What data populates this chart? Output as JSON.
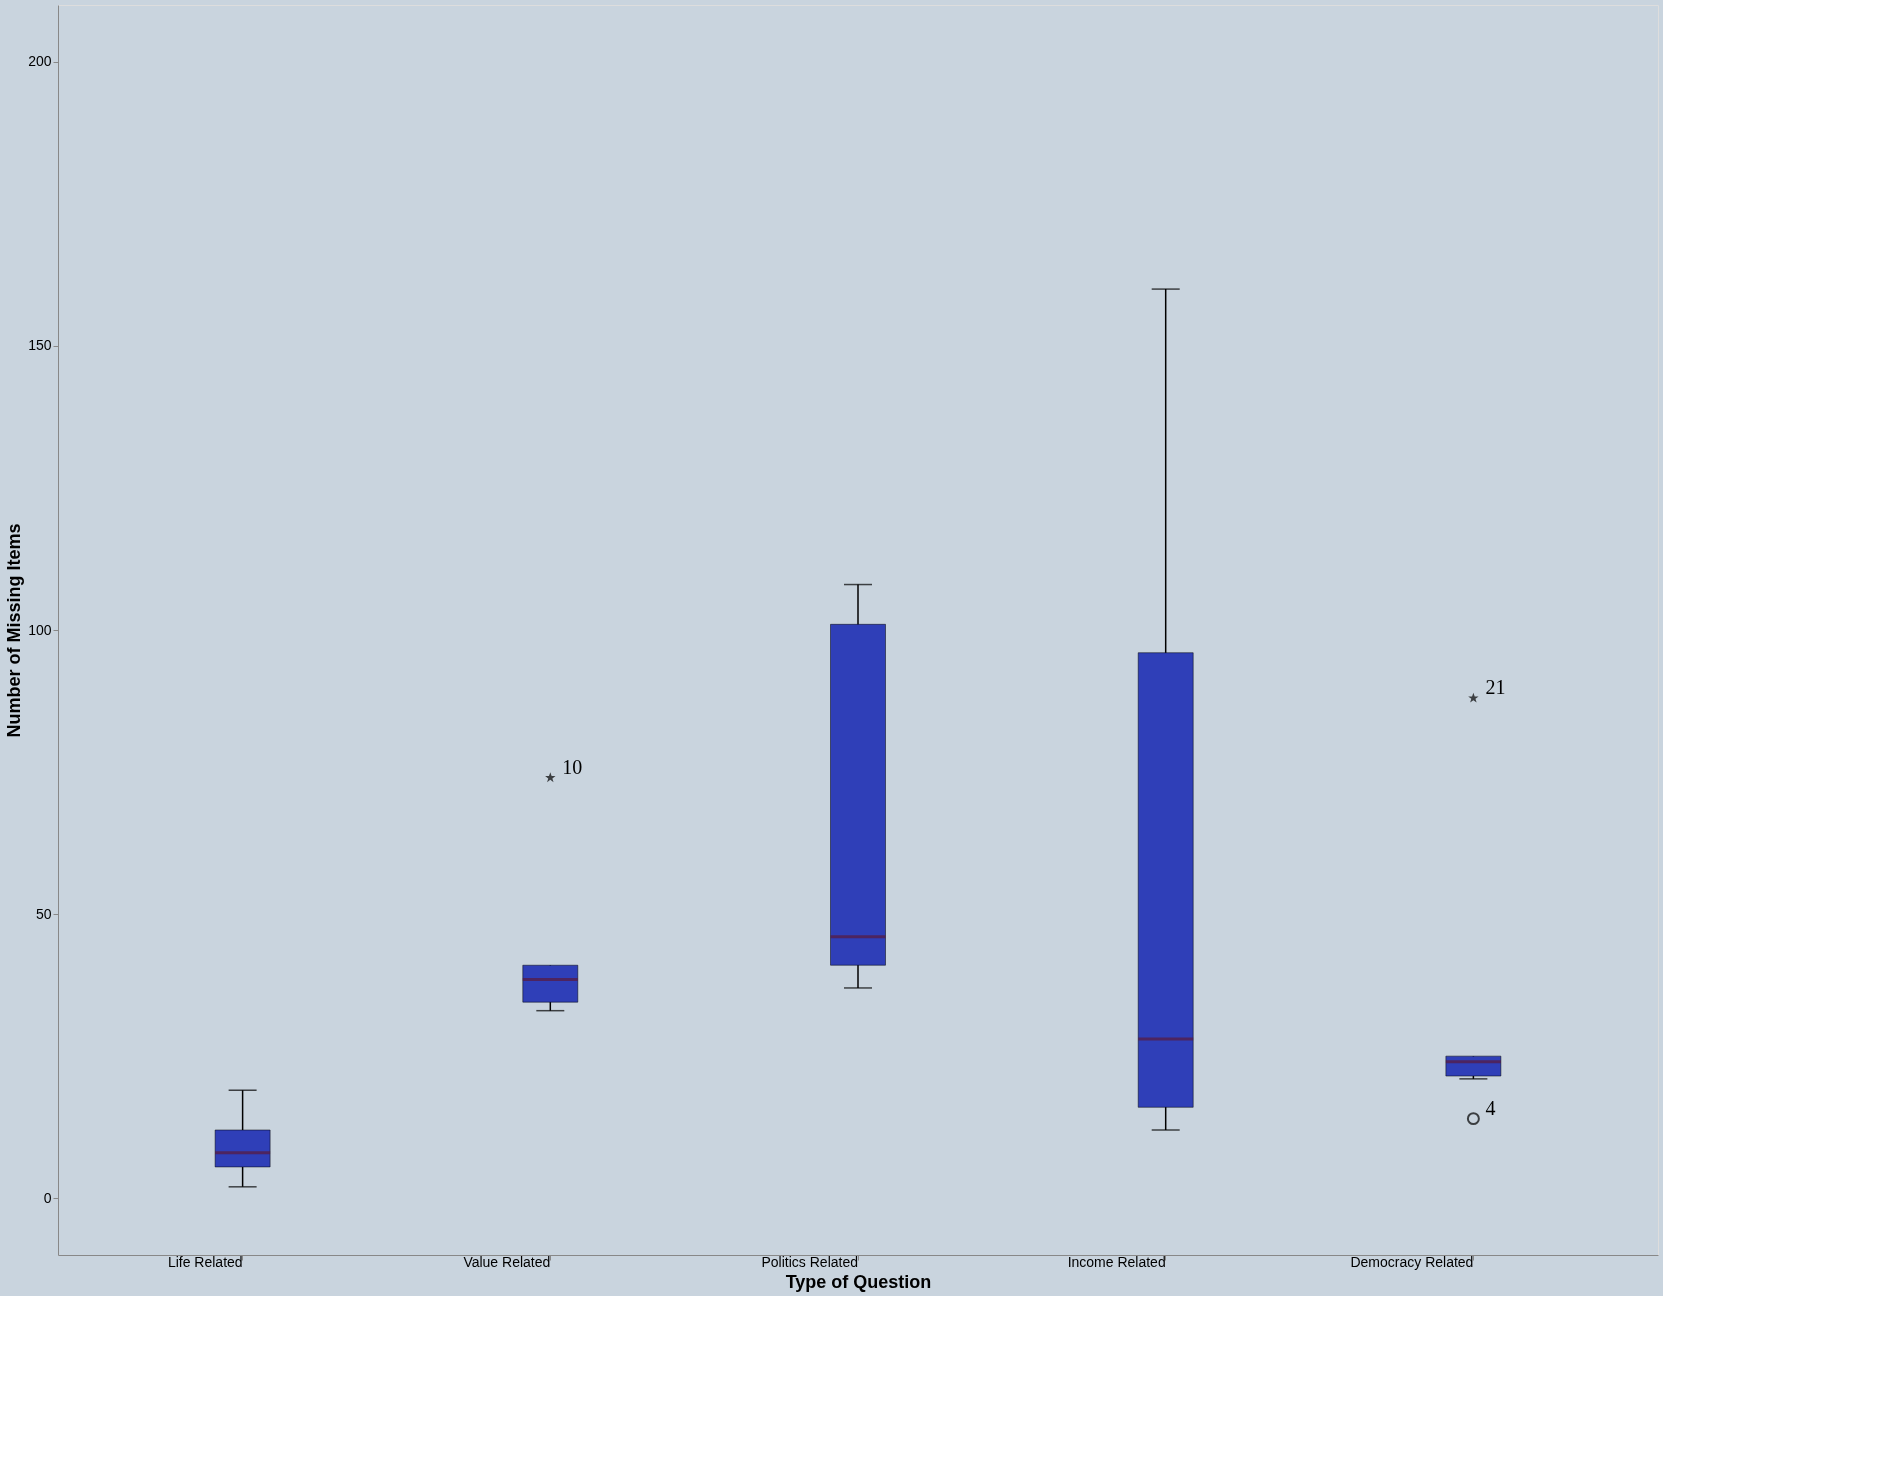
{
  "chart_data": {
    "type": "box",
    "xlabel": "Type of Question",
    "ylabel": "Number of Missing Items",
    "categories": [
      "Life Related",
      "Value Related",
      "Politics Related",
      "Income Related",
      "Democracy Related"
    ],
    "boxes": [
      {
        "low": 2,
        "q1": 5.5,
        "median": 8,
        "q3": 12,
        "high": 19
      },
      {
        "low": 33,
        "q1": 34.5,
        "median": 38.5,
        "q3": 41,
        "high": 41,
        "outliers": [
          74
        ]
      },
      {
        "low": 37,
        "q1": 41,
        "median": 46,
        "q3": 101,
        "high": 108
      },
      {
        "low": 12,
        "q1": 16,
        "median": 28,
        "q3": 96,
        "high": 160
      },
      {
        "low": 21,
        "q1": 21.5,
        "median": 24,
        "q3": 25,
        "high": 25,
        "outliers": [
          88,
          14
        ]
      }
    ],
    "color": "#2f3fb8",
    "ylim": [
      -10,
      210
    ],
    "yticks": [
      0,
      50,
      100,
      150,
      200
    ],
    "grid": false,
    "annotations": [
      "10",
      "21",
      "4"
    ]
  }
}
